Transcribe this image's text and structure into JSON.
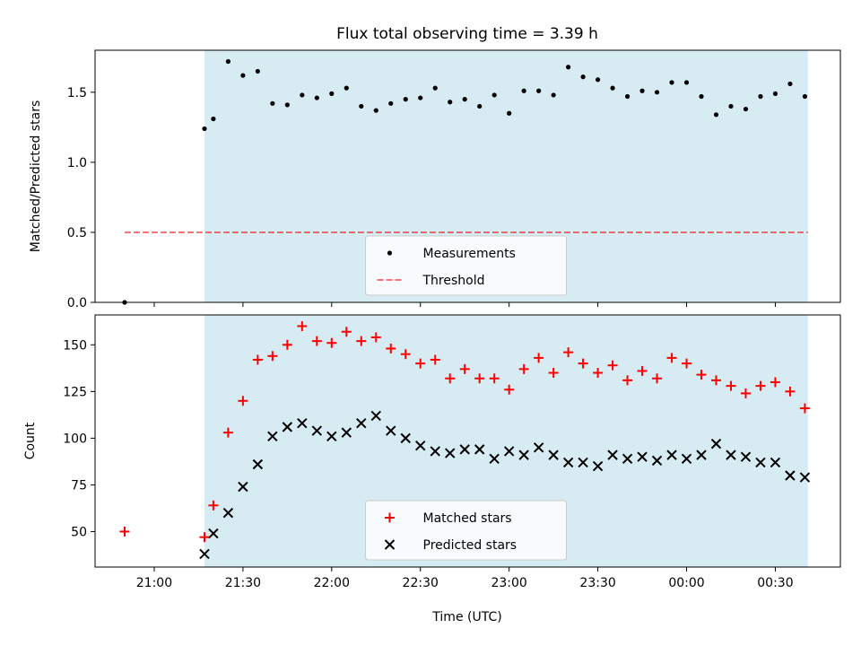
{
  "figure": {
    "title": "Flux total observing time = 3.39 h",
    "xlabel": "Time (UTC)"
  },
  "colors": {
    "shade": "#add8e6",
    "measurement": "#000000",
    "threshold": "#ff0000",
    "matched": "#ff0000",
    "predicted": "#000000"
  },
  "chart_data": [
    {
      "type": "scatter",
      "ylabel": "Matched/Predicted stars",
      "xlim": [
        "20:40",
        "00:52"
      ],
      "ylim": [
        0,
        1.8
      ],
      "yticks": [
        0,
        0.5,
        1.0,
        1.5
      ],
      "ytick_labels": [
        "0.0",
        "0.5",
        "1.0",
        "1.5"
      ],
      "shaded_span": [
        "21:17",
        "00:41"
      ],
      "legend": {
        "placement": "lower-center",
        "entries": [
          "Measurements",
          "Threshold"
        ]
      },
      "threshold": {
        "name": "Threshold",
        "value": 0.5,
        "x_range": [
          "20:50",
          "00:41"
        ]
      },
      "series": [
        {
          "name": "Measurements",
          "x": [
            "20:50",
            "21:17",
            "21:20",
            "21:25",
            "21:30",
            "21:35",
            "21:40",
            "21:45",
            "21:50",
            "21:55",
            "22:00",
            "22:05",
            "22:10",
            "22:15",
            "22:20",
            "22:25",
            "22:30",
            "22:35",
            "22:40",
            "22:45",
            "22:50",
            "22:55",
            "23:00",
            "23:05",
            "23:10",
            "23:15",
            "23:20",
            "23:25",
            "23:30",
            "23:35",
            "23:40",
            "23:45",
            "23:50",
            "23:55",
            "00:00",
            "00:05",
            "00:10",
            "00:15",
            "00:20",
            "00:25",
            "00:30",
            "00:35",
            "00:40"
          ],
          "values": [
            0.0,
            1.24,
            1.31,
            1.72,
            1.62,
            1.65,
            1.42,
            1.41,
            1.48,
            1.46,
            1.49,
            1.53,
            1.4,
            1.37,
            1.42,
            1.45,
            1.46,
            1.53,
            1.43,
            1.45,
            1.4,
            1.48,
            1.35,
            1.51,
            1.51,
            1.48,
            1.68,
            1.61,
            1.59,
            1.53,
            1.47,
            1.51,
            1.5,
            1.57,
            1.57,
            1.47,
            1.34,
            1.4,
            1.38,
            1.47,
            1.49,
            1.56,
            1.47
          ]
        }
      ]
    },
    {
      "type": "scatter",
      "ylabel": "Count",
      "xlim": [
        "20:40",
        "00:52"
      ],
      "ylim": [
        31,
        166
      ],
      "yticks": [
        50,
        75,
        100,
        125,
        150
      ],
      "ytick_labels": [
        "50",
        "75",
        "100",
        "125",
        "150"
      ],
      "xtick_labels": [
        "21:00",
        "21:30",
        "22:00",
        "22:30",
        "23:00",
        "23:30",
        "00:00",
        "00:30"
      ],
      "shaded_span": [
        "21:17",
        "00:41"
      ],
      "legend": {
        "placement": "lower-center",
        "entries": [
          "Matched stars",
          "Predicted stars"
        ]
      },
      "series": [
        {
          "name": "Matched stars",
          "marker": "+",
          "x": [
            "20:50",
            "21:17",
            "21:20",
            "21:25",
            "21:30",
            "21:35",
            "21:40",
            "21:45",
            "21:50",
            "21:55",
            "22:00",
            "22:05",
            "22:10",
            "22:15",
            "22:20",
            "22:25",
            "22:30",
            "22:35",
            "22:40",
            "22:45",
            "22:50",
            "22:55",
            "23:00",
            "23:05",
            "23:10",
            "23:15",
            "23:20",
            "23:25",
            "23:30",
            "23:35",
            "23:40",
            "23:45",
            "23:50",
            "23:55",
            "00:00",
            "00:05",
            "00:10",
            "00:15",
            "00:20",
            "00:25",
            "00:30",
            "00:35",
            "00:40"
          ],
          "values": [
            50,
            47,
            64,
            103,
            120,
            142,
            144,
            150,
            160,
            152,
            151,
            157,
            152,
            154,
            148,
            145,
            140,
            142,
            132,
            137,
            132,
            132,
            126,
            137,
            143,
            135,
            146,
            140,
            135,
            139,
            131,
            136,
            132,
            143,
            140,
            134,
            131,
            128,
            124,
            128,
            130,
            125,
            116
          ]
        },
        {
          "name": "Predicted stars",
          "marker": "x",
          "x": [
            "21:17",
            "21:20",
            "21:25",
            "21:30",
            "21:35",
            "21:40",
            "21:45",
            "21:50",
            "21:55",
            "22:00",
            "22:05",
            "22:10",
            "22:15",
            "22:20",
            "22:25",
            "22:30",
            "22:35",
            "22:40",
            "22:45",
            "22:50",
            "22:55",
            "23:00",
            "23:05",
            "23:10",
            "23:15",
            "23:20",
            "23:25",
            "23:30",
            "23:35",
            "23:40",
            "23:45",
            "23:50",
            "23:55",
            "00:00",
            "00:05",
            "00:10",
            "00:15",
            "00:20",
            "00:25",
            "00:30",
            "00:35",
            "00:40"
          ],
          "values": [
            38,
            49,
            60,
            74,
            86,
            101,
            106,
            108,
            104,
            101,
            103,
            108,
            112,
            104,
            100,
            96,
            93,
            92,
            94,
            94,
            89,
            93,
            91,
            95,
            91,
            87,
            87,
            85,
            91,
            89,
            90,
            88,
            91,
            89,
            91,
            97,
            91,
            90,
            87,
            87,
            80,
            79
          ]
        }
      ]
    }
  ]
}
